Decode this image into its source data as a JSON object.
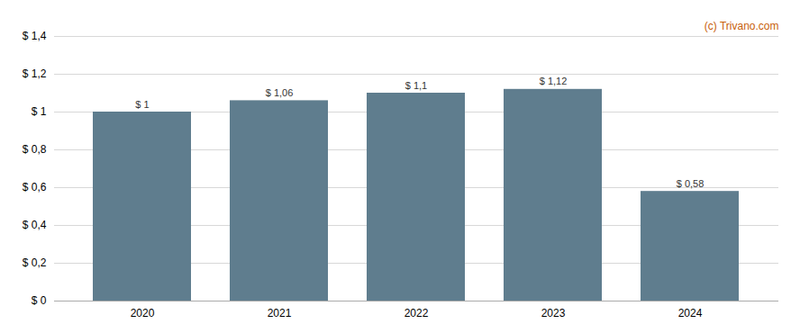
{
  "chart_data": {
    "type": "bar",
    "categories": [
      "2020",
      "2021",
      "2022",
      "2023",
      "2024"
    ],
    "values": [
      1.0,
      1.06,
      1.1,
      1.12,
      0.58
    ],
    "value_labels": [
      "$ 1",
      "$ 1,06",
      "$ 1,1",
      "$ 1,12",
      "$ 0,58"
    ],
    "data_labels": true,
    "color": "#5f7d8e",
    "ylim": [
      0,
      1.4
    ],
    "yticks": [
      {
        "value": 0,
        "label": "$ 0"
      },
      {
        "value": 0.2,
        "label": "$ 0,2"
      },
      {
        "value": 0.4,
        "label": "$ 0,4"
      },
      {
        "value": 0.6,
        "label": "$ 0,6"
      },
      {
        "value": 0.8,
        "label": "$ 0,8"
      },
      {
        "value": 1.0,
        "label": "$ 1"
      },
      {
        "value": 1.2,
        "label": "$ 1,2"
      },
      {
        "value": 1.4,
        "label": "$ 1,4"
      }
    ],
    "grid": true,
    "annotations": [
      {
        "text": "(c) Trivano.com",
        "color": "#c8600a"
      }
    ]
  }
}
